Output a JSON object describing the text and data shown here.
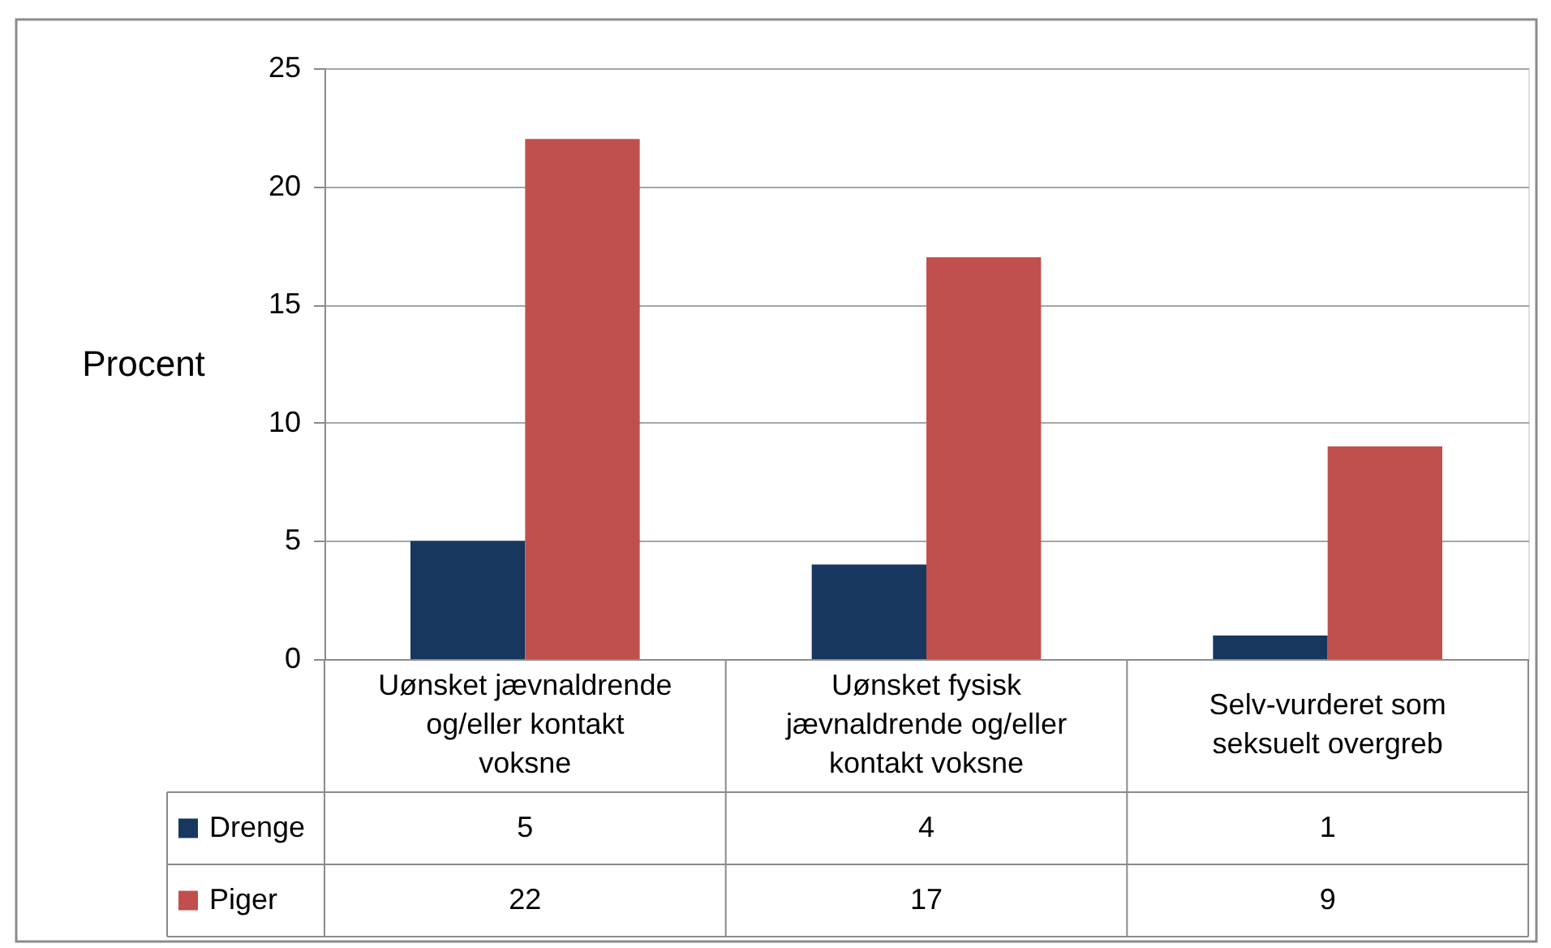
{
  "chart_data": {
    "type": "bar",
    "ylabel": "Procent",
    "categories": [
      "Uønsket jævnaldrende og/eller kontakt voksne",
      "Uønsket fysisk jævnaldrende og/eller kontakt voksne",
      "Selv-vurderet som seksuelt overgreb"
    ],
    "series": [
      {
        "name": "Drenge",
        "color": "#17375e",
        "values": [
          5,
          4,
          1
        ]
      },
      {
        "name": "Piger",
        "color": "#c0504d",
        "values": [
          22,
          17,
          9
        ]
      }
    ],
    "ylim": [
      0,
      25
    ],
    "yticks": [
      0,
      5,
      10,
      15,
      20,
      25
    ],
    "grid": "y",
    "legend": "bottom left",
    "data_labels": true
  }
}
